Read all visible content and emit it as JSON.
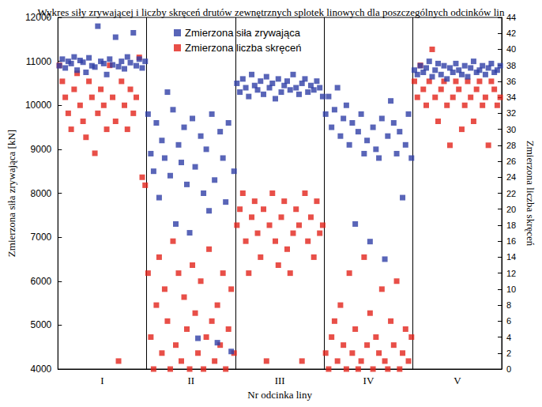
{
  "chart_data": {
    "type": "scatter",
    "title": "Wykres siły zrywającej i liczby skręceń drutów zewnętrznych splotek linowych dla poszczególnych odcinków lin",
    "x_label": "Nr odcinka liny",
    "y_label": "Zmierzona siła zrywająca [kN]",
    "y2_label": "Zmierzona liczba skręceń",
    "categories": [
      "I",
      "II",
      "III",
      "IV",
      "V"
    ],
    "ylim": [
      4000,
      12000
    ],
    "yticks": [
      4000,
      5000,
      6000,
      7000,
      8000,
      9000,
      10000,
      11000,
      12000
    ],
    "y2lim": [
      0,
      44
    ],
    "y2ticks": [
      0,
      2,
      4,
      6,
      8,
      10,
      12,
      14,
      16,
      18,
      20,
      22,
      24,
      26,
      28,
      30,
      32,
      34,
      36,
      38,
      40,
      42,
      44
    ],
    "grid": "x",
    "legend": "top",
    "marker": "square",
    "series": [
      {
        "name": "Zmierzona siła zrywająca",
        "color": "#2f3ea6",
        "axis": "y",
        "values": [
          [
            10900,
            11050,
            10850,
            11000,
            10950,
            11100,
            10800,
            11020,
            10980,
            10750,
            11080,
            10900,
            10870,
            11800,
            11000,
            10950,
            10700,
            11050,
            10920,
            11550,
            10880,
            11000,
            10830,
            11100,
            10970,
            11650,
            10900,
            11050,
            10850,
            11000
          ],
          [
            9800,
            8900,
            8500,
            9600,
            7900,
            9200,
            8800,
            10300,
            8400,
            9900,
            7300,
            9100,
            8700,
            9500,
            8200,
            7100,
            9700,
            8600,
            4700,
            9300,
            8000,
            9000,
            7600,
            9800,
            8300,
            4600,
            9400,
            8800,
            7800,
            9600,
            4400,
            8500
          ],
          [
            10500,
            10300,
            10600,
            10400,
            10200,
            10700,
            10450,
            10350,
            10550,
            10250,
            10650,
            10400,
            10500,
            10150,
            10600,
            10300,
            10450,
            10550,
            10350,
            10700,
            10400,
            10250,
            10500,
            10600,
            10300,
            10450,
            10350,
            10550,
            10400,
            10200
          ],
          [
            9800,
            10200,
            9500,
            9900,
            10400,
            9300,
            9700,
            10000,
            9100,
            9600,
            7300,
            9400,
            9800,
            8900,
            9200,
            6900,
            9500,
            9000,
            8800,
            9700,
            6500,
            9300,
            10100,
            9600,
            8900,
            9400,
            7900,
            9100,
            9800,
            8800
          ],
          [
            10800,
            10700,
            10900,
            10750,
            10850,
            11000,
            10650,
            10800,
            10950,
            10700,
            10900,
            10600,
            10850,
            10750,
            10950,
            10800,
            10700,
            10900,
            10650,
            10850,
            11000,
            10750,
            10800,
            10900,
            10700,
            10850,
            10950,
            10750,
            10800,
            10900
          ]
        ]
      },
      {
        "name": "Zmierzona liczba skręceń",
        "color": "#e2231a",
        "axis": "y2",
        "values": [
          [
            38,
            36,
            34,
            32,
            30,
            35,
            37,
            33,
            31,
            29,
            36,
            34,
            27,
            32,
            35,
            33,
            30,
            38,
            34,
            31,
            1,
            36,
            33,
            30,
            35,
            32,
            34,
            39,
            24,
            23
          ],
          [
            12,
            4,
            0,
            8,
            14,
            2,
            10,
            6,
            0,
            16,
            3,
            12,
            1,
            9,
            5,
            0,
            13,
            7,
            2,
            11,
            0,
            4,
            15,
            6,
            1,
            8,
            3,
            12,
            0,
            5,
            10,
            2
          ],
          [
            18,
            20,
            22,
            16,
            12,
            19,
            21,
            17,
            14,
            20,
            1,
            18,
            22,
            16,
            13,
            19,
            21,
            15,
            12,
            17,
            20,
            18,
            1,
            22,
            16,
            19,
            14,
            21,
            17,
            18
          ],
          [
            2,
            0,
            4,
            6,
            1,
            8,
            3,
            0,
            12,
            2,
            5,
            0,
            1,
            14,
            3,
            7,
            0,
            4,
            2,
            10,
            1,
            0,
            6,
            3,
            11,
            0,
            2,
            5,
            1,
            4
          ],
          [
            36,
            34,
            38,
            35,
            33,
            36,
            40,
            34,
            31,
            35,
            36,
            33,
            28,
            34,
            36,
            35,
            30,
            33,
            36,
            34,
            31,
            35,
            36,
            33,
            34,
            28,
            36,
            35,
            33,
            34
          ]
        ]
      }
    ]
  }
}
